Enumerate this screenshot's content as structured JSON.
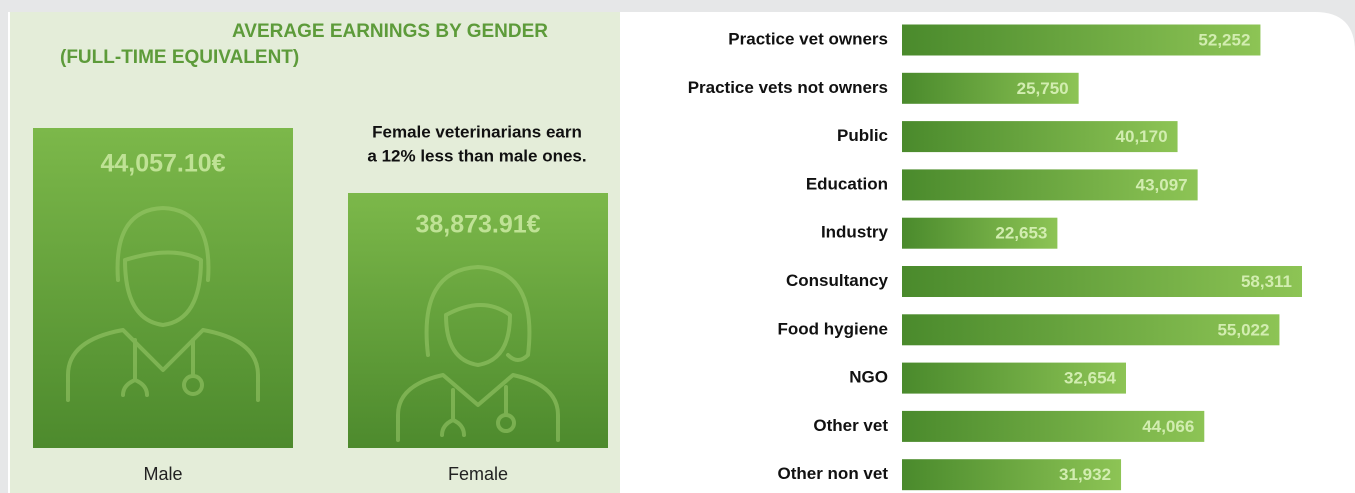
{
  "header": {
    "title": "AVERAGE EARNINGS BY GENDER",
    "subtitle": "(FULL-TIME EQUIVALENT)"
  },
  "note": [
    "Female veterinarians earn",
    "a 12% less than male ones."
  ],
  "figures": [
    {
      "value": "44,057.10€",
      "label": "Male"
    },
    {
      "value": "38,873.91€",
      "label": "Female"
    }
  ],
  "chart_data": {
    "type": "bar",
    "orientation": "horizontal",
    "categories": [
      "Practice vet owners",
      "Practice vets not owners",
      "Public",
      "Education",
      "Industry",
      "Consultancy",
      "Food hygiene",
      "NGO",
      "Other vet",
      "Other non vet"
    ],
    "values": [
      52252,
      25750,
      40170,
      43097,
      22653,
      58311,
      55022,
      32654,
      44066,
      31932
    ],
    "value_labels": [
      "52,252",
      "25,750",
      "40,170",
      "43,097",
      "22,653",
      "58,311",
      "55,022",
      "32,654",
      "44,066",
      "31,932"
    ],
    "color": "#5f9a36"
  }
}
